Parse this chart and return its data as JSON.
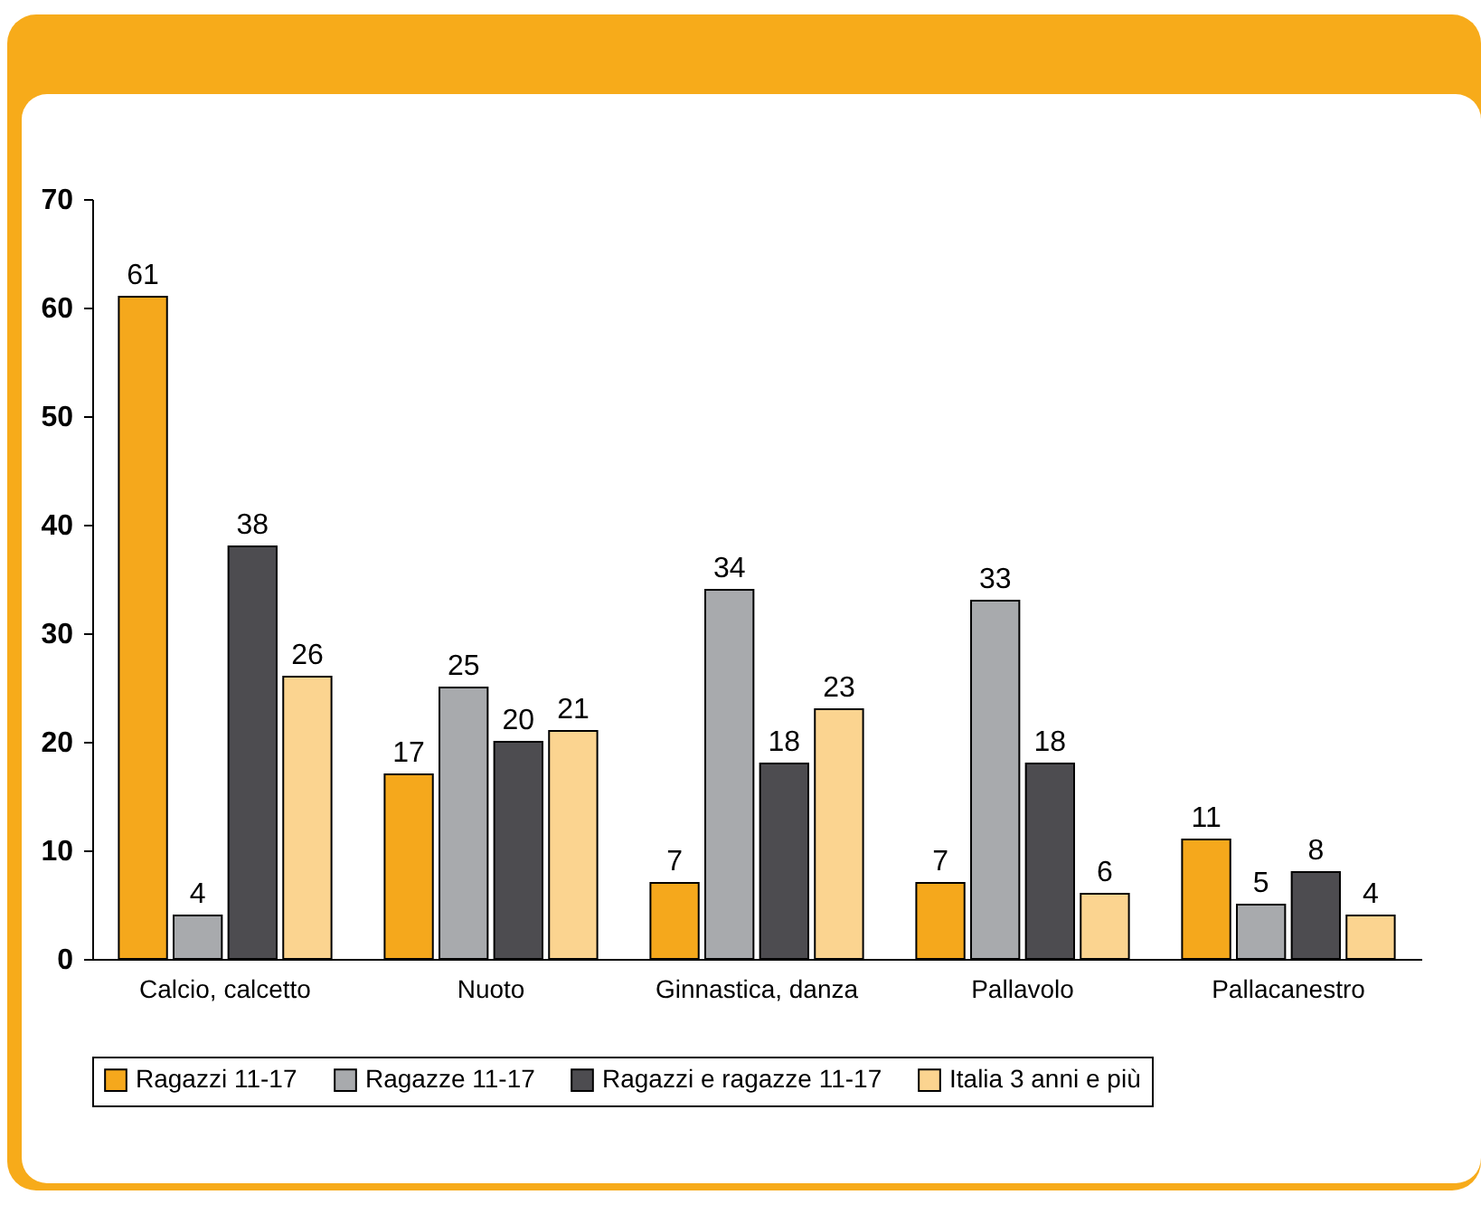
{
  "chart_data": {
    "type": "bar",
    "categories": [
      "Calcio, calcetto",
      "Nuoto",
      "Ginnastica, danza",
      "Pallavolo",
      "Pallacanestro"
    ],
    "series": [
      {
        "name": "Ragazzi 11-17",
        "color": "#f5a81c",
        "values": [
          61,
          17,
          7,
          7,
          11
        ]
      },
      {
        "name": "Ragazze 11-17",
        "color": "#a8aaad",
        "values": [
          4,
          25,
          34,
          33,
          5
        ]
      },
      {
        "name": "Ragazzi e ragazze 11-17",
        "color": "#4d4c50",
        "values": [
          38,
          20,
          18,
          18,
          8
        ]
      },
      {
        "name": "Italia 3 anni e più",
        "color": "#fbd490",
        "values": [
          26,
          21,
          23,
          6,
          4
        ]
      }
    ],
    "ylim": [
      0,
      70
    ],
    "yticks": [
      0,
      10,
      20,
      30,
      40,
      50,
      60,
      70
    ],
    "grid": false,
    "legend": "bottom",
    "data_labels": true
  }
}
